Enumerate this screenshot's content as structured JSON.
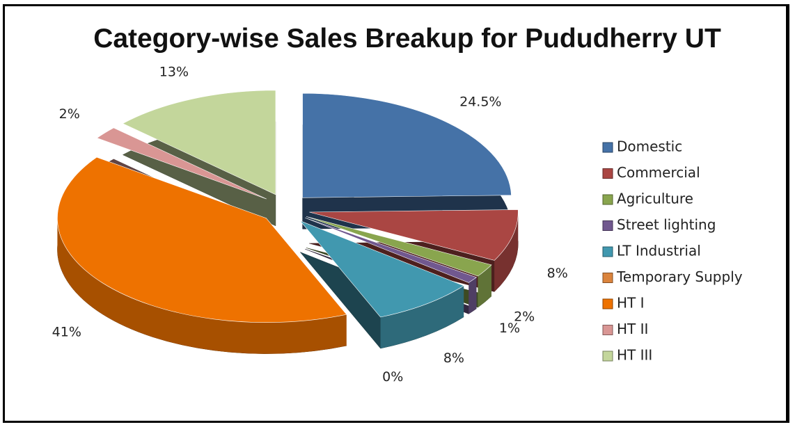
{
  "chart_data": {
    "type": "pie",
    "title": "Category-wise Sales Breakup for Pududherry UT",
    "categories": [
      "Domestic",
      "Commercial",
      "Agriculture",
      "Street lighting",
      "LT Industrial",
      "Temporary Supply",
      "HT I",
      "HT II",
      "HT III"
    ],
    "values": [
      24.5,
      8,
      2,
      1,
      8,
      0,
      41,
      2,
      13
    ],
    "value_labels": [
      "24.5%",
      "8%",
      "2%",
      "1%",
      "8%",
      "0%",
      "41%",
      "2%",
      "13%"
    ],
    "colors": [
      "#4572a7",
      "#aa4643",
      "#89a54e",
      "#71588f",
      "#4198af",
      "#db843d",
      "#ee7200",
      "#d99694",
      "#c3d69b"
    ],
    "legend": "right"
  }
}
